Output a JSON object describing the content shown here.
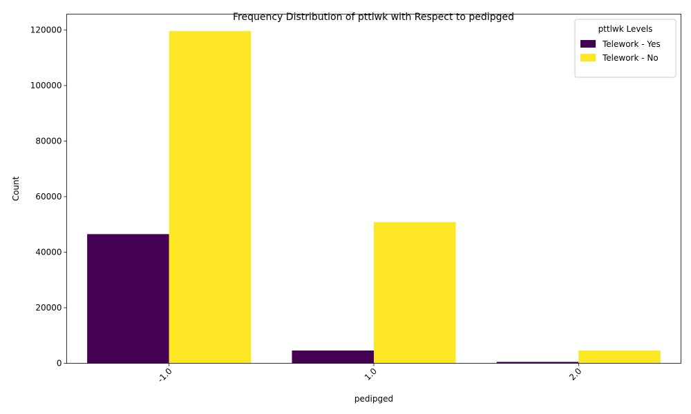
{
  "chart_data": {
    "type": "bar",
    "title": "Frequency Distribution of pttlwk with Respect to pedipged",
    "xlabel": "pedipged",
    "ylabel": "Count",
    "categories": [
      "-1.0",
      "1.0",
      "2.0"
    ],
    "series": [
      {
        "name": "Telework - Yes",
        "color": "#440154",
        "values": [
          46500,
          4600,
          500
        ]
      },
      {
        "name": "Telework - No",
        "color": "#fde725",
        "values": [
          119600,
          50800,
          4600
        ]
      }
    ],
    "ylim": [
      0,
      125700
    ],
    "yticks": [
      0,
      20000,
      40000,
      60000,
      80000,
      100000,
      120000
    ],
    "legend": {
      "title": "pttlwk Levels",
      "position": "top-right"
    },
    "grid": false,
    "x_tick_rotation": 45
  }
}
